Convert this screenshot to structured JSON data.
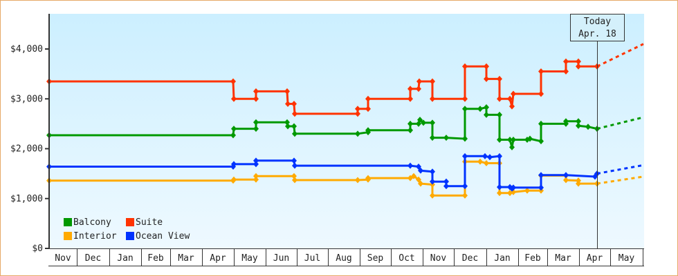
{
  "chart_data": {
    "type": "line",
    "title": "",
    "xlabel": "",
    "ylabel": "",
    "ylim": [
      0,
      4700
    ],
    "y_ticks": [
      "$0",
      "$1,000",
      "$2,000",
      "$3,000",
      "$4,000"
    ],
    "y_tick_values": [
      0,
      1000,
      2000,
      3000,
      4000
    ],
    "x_tick_labels": [
      "Nov",
      "Dec",
      "Jan",
      "Feb",
      "Mar",
      "Apr",
      "May",
      "Jun",
      "Jul",
      "Aug",
      "Sep",
      "Oct",
      "Nov",
      "Dec",
      "Jan",
      "Feb",
      "Mar",
      "Apr",
      "May"
    ],
    "grid": false,
    "legend_position": "lower-left inside",
    "today_marker": {
      "line1": "Today",
      "line2": "Apr. 18"
    },
    "step_line": true,
    "series": [
      {
        "name": "Suite",
        "color": "#ff3300",
        "points": [
          [
            71,
            3350
          ],
          [
            337,
            3350
          ],
          [
            338,
            3000
          ],
          [
            370,
            3000
          ],
          [
            370,
            3150
          ],
          [
            415,
            3150
          ],
          [
            416,
            2900
          ],
          [
            425,
            2900
          ],
          [
            426,
            2700
          ],
          [
            517,
            2700
          ],
          [
            517,
            2800
          ],
          [
            532,
            2800
          ],
          [
            532,
            3000
          ],
          [
            593,
            3000
          ],
          [
            593,
            3200
          ],
          [
            605,
            3200
          ],
          [
            606,
            3350
          ],
          [
            625,
            3350
          ],
          [
            625,
            3000
          ],
          [
            645,
            3000
          ],
          [
            672,
            3000
          ],
          [
            672,
            3650
          ],
          [
            703,
            3650
          ],
          [
            703,
            3400
          ],
          [
            722,
            3400
          ],
          [
            722,
            3000
          ],
          [
            737,
            3000
          ],
          [
            740,
            2850
          ],
          [
            742,
            3100
          ],
          [
            782,
            3100
          ],
          [
            782,
            3550
          ],
          [
            818,
            3550
          ],
          [
            818,
            3750
          ],
          [
            836,
            3750
          ],
          [
            836,
            3650
          ],
          [
            863,
            3650
          ]
        ],
        "forecast": [
          [
            863,
            3650
          ],
          [
            930,
            4100
          ]
        ]
      },
      {
        "name": "Balcony",
        "color": "#009900",
        "points": [
          [
            71,
            2270
          ],
          [
            337,
            2270
          ],
          [
            338,
            2400
          ],
          [
            370,
            2400
          ],
          [
            370,
            2530
          ],
          [
            415,
            2530
          ],
          [
            416,
            2450
          ],
          [
            425,
            2450
          ],
          [
            426,
            2300
          ],
          [
            517,
            2300
          ],
          [
            532,
            2330
          ],
          [
            532,
            2370
          ],
          [
            593,
            2370
          ],
          [
            593,
            2500
          ],
          [
            605,
            2500
          ],
          [
            607,
            2580
          ],
          [
            612,
            2520
          ],
          [
            625,
            2520
          ],
          [
            625,
            2220
          ],
          [
            645,
            2220
          ],
          [
            672,
            2200
          ],
          [
            672,
            2800
          ],
          [
            694,
            2800
          ],
          [
            703,
            2830
          ],
          [
            703,
            2680
          ],
          [
            722,
            2680
          ],
          [
            722,
            2180
          ],
          [
            737,
            2180
          ],
          [
            740,
            2030
          ],
          [
            742,
            2180
          ],
          [
            762,
            2180
          ],
          [
            766,
            2200
          ],
          [
            782,
            2150
          ],
          [
            782,
            2500
          ],
          [
            818,
            2500
          ],
          [
            818,
            2550
          ],
          [
            836,
            2550
          ],
          [
            836,
            2460
          ],
          [
            850,
            2440
          ],
          [
            863,
            2400
          ]
        ],
        "forecast": [
          [
            863,
            2400
          ],
          [
            930,
            2630
          ]
        ]
      },
      {
        "name": "Ocean View",
        "color": "#0033ff",
        "points": [
          [
            71,
            1640
          ],
          [
            337,
            1640
          ],
          [
            338,
            1690
          ],
          [
            370,
            1690
          ],
          [
            370,
            1760
          ],
          [
            425,
            1760
          ],
          [
            426,
            1660
          ],
          [
            517,
            1660
          ],
          [
            532,
            1660
          ],
          [
            593,
            1660
          ],
          [
            605,
            1640
          ],
          [
            608,
            1560
          ],
          [
            625,
            1540
          ],
          [
            625,
            1340
          ],
          [
            645,
            1340
          ],
          [
            645,
            1250
          ],
          [
            672,
            1250
          ],
          [
            672,
            1850
          ],
          [
            701,
            1850
          ],
          [
            708,
            1830
          ],
          [
            722,
            1850
          ],
          [
            722,
            1230
          ],
          [
            737,
            1230
          ],
          [
            740,
            1200
          ],
          [
            742,
            1220
          ],
          [
            765,
            1220
          ],
          [
            782,
            1220
          ],
          [
            782,
            1470
          ],
          [
            818,
            1470
          ],
          [
            860,
            1440
          ],
          [
            863,
            1500
          ]
        ],
        "forecast": [
          [
            863,
            1500
          ],
          [
            930,
            1670
          ]
        ]
      },
      {
        "name": "Interior",
        "color": "#ffaa00",
        "points": [
          [
            71,
            1360
          ],
          [
            337,
            1360
          ],
          [
            338,
            1380
          ],
          [
            370,
            1380
          ],
          [
            370,
            1450
          ],
          [
            425,
            1450
          ],
          [
            426,
            1370
          ],
          [
            517,
            1370
          ],
          [
            532,
            1380
          ],
          [
            532,
            1410
          ],
          [
            593,
            1410
          ],
          [
            598,
            1450
          ],
          [
            605,
            1380
          ],
          [
            608,
            1300
          ],
          [
            625,
            1280
          ],
          [
            625,
            1060
          ],
          [
            672,
            1060
          ],
          [
            672,
            1740
          ],
          [
            694,
            1740
          ],
          [
            703,
            1710
          ],
          [
            722,
            1710
          ],
          [
            722,
            1110
          ],
          [
            737,
            1110
          ],
          [
            742,
            1130
          ],
          [
            762,
            1160
          ],
          [
            782,
            1160
          ],
          [
            782,
            1460
          ],
          [
            818,
            1460
          ],
          [
            818,
            1370
          ],
          [
            836,
            1360
          ],
          [
            836,
            1300
          ],
          [
            863,
            1300
          ]
        ],
        "forecast": [
          [
            863,
            1300
          ],
          [
            930,
            1440
          ]
        ]
      }
    ]
  },
  "legend": {
    "items": [
      {
        "label": "Balcony",
        "color": "#009900"
      },
      {
        "label": "Suite",
        "color": "#ff3300"
      },
      {
        "label": "Interior",
        "color": "#ffaa00"
      },
      {
        "label": "Ocean View",
        "color": "#0033ff"
      }
    ]
  },
  "today": {
    "line1": "Today",
    "line2": "Apr. 18"
  }
}
